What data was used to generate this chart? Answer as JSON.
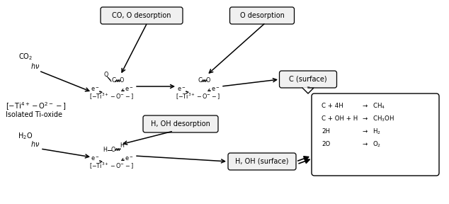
{
  "bg_color": "#ffffff",
  "fig_width": 6.34,
  "fig_height": 2.88,
  "dpi": 100,
  "labels": {
    "co2": "CO$_2$",
    "hv_top": "$h\\nu$",
    "ti_oxide": "$[-\\mathrm{Ti}^{4+}-\\mathrm{O}^{2-}-]$",
    "isolated": "Isolated Ti-oxide",
    "h2o": "H$_2$O",
    "hv_bot": "$h\\nu$",
    "co_o_desorp": "CO, O desorption",
    "o_desorp": "O desorption",
    "h_oh_desorp": "H, OH desorption",
    "c_surface": "C (surface)",
    "h_oh_surface": "H, OH (surface)",
    "bracket_top": "$[-\\mathrm{Ti}^{3+}-\\mathrm{O}^{-}-]$",
    "reactions_line1": "C + 4H",
    "reactions_line2": "C + OH + H",
    "reactions_line3": "2H",
    "reactions_line4": "2O",
    "products_line1": "$\\rightarrow$  CH$_4$",
    "products_line2": "$\\rightarrow$  CH$_3$OH",
    "products_line3": "$\\rightarrow$  H$_2$",
    "products_line4": "$\\rightarrow$  O$_2$"
  }
}
